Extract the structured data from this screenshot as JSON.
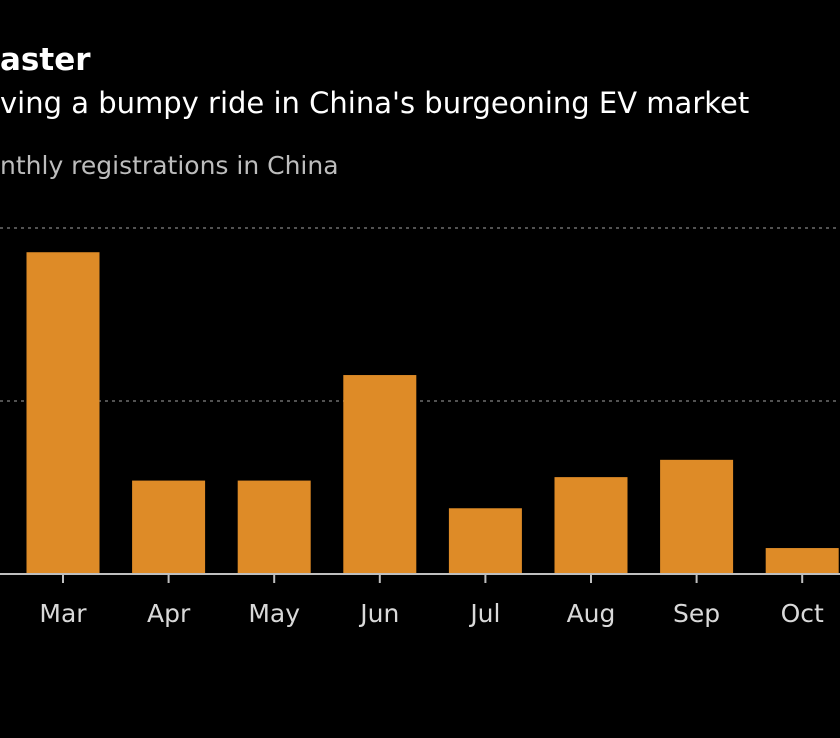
{
  "header": {
    "title": "aster",
    "subtitle": "ving a bumpy ride in China's burgeoning EV market",
    "unit_note": "nthly registrations in China"
  },
  "colors": {
    "background": "#000000",
    "bar": "#de8b27",
    "gridline": "#6e6e6e",
    "axis": "#bfbfbf",
    "tick_label": "#d9d9d9",
    "title": "#ffffff",
    "subtitle": "#ffffff",
    "unit_note": "#bdbdbd"
  },
  "chart_data": {
    "type": "bar",
    "title": "aster",
    "subtitle": "ving a bumpy ride in China's burgeoning EV market",
    "ylabel": "nthly registrations in China",
    "xlabel": "",
    "categories": [
      "Mar",
      "Apr",
      "May",
      "Jun",
      "Jul",
      "Aug",
      "Sep",
      "Oct"
    ],
    "values": [
      1.86,
      0.54,
      0.54,
      1.15,
      0.38,
      0.56,
      0.66,
      0.15
    ],
    "ylim": [
      0,
      2
    ],
    "gridlines": [
      1,
      2
    ],
    "grid": true,
    "legend": "none"
  }
}
